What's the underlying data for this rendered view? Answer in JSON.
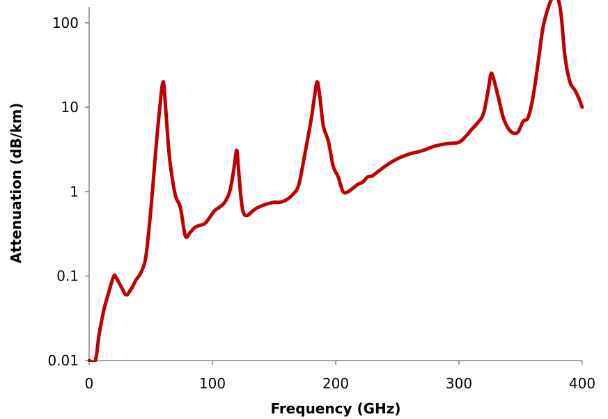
{
  "chart_data": {
    "type": "line",
    "title": "",
    "xlabel": "Frequency (GHz)",
    "ylabel": "Attenuation (dB/km)",
    "xlim": [
      0,
      400
    ],
    "ylim": [
      0.01,
      200
    ],
    "yscale": "log",
    "grid": false,
    "legend": "none",
    "x_ticks": [
      0,
      100,
      200,
      300,
      400
    ],
    "x_tick_labels": [
      "0",
      "100",
      "200",
      "300",
      "400"
    ],
    "y_ticks": [
      0.01,
      0.1,
      1,
      10,
      100
    ],
    "y_tick_labels": [
      "0.01",
      "0.1",
      "1",
      "10",
      "100"
    ],
    "series": [
      {
        "color": "#C00000",
        "x": [
          0,
          5,
          8,
          12,
          16,
          20,
          22,
          26,
          30,
          34,
          38,
          42,
          46,
          50,
          54,
          57,
          60,
          62,
          64,
          66,
          70,
          74,
          78,
          82,
          86,
          90,
          94,
          98,
          102,
          106,
          110,
          114,
          117,
          119,
          120,
          121,
          123,
          125,
          128,
          132,
          136,
          140,
          145,
          150,
          155,
          160,
          165,
          170,
          175,
          180,
          183,
          185,
          187,
          190,
          194,
          198,
          202,
          206,
          210,
          214,
          218,
          222,
          226,
          230,
          240,
          250,
          260,
          270,
          280,
          290,
          300,
          306,
          310,
          315,
          320,
          324,
          326,
          328,
          332,
          336,
          340,
          344,
          348,
          352,
          356,
          360,
          364,
          368,
          372,
          376,
          380,
          383,
          386,
          390,
          394,
          397,
          400
        ],
        "y": [
          0.01,
          0.01,
          0.02,
          0.04,
          0.065,
          0.1,
          0.095,
          0.075,
          0.06,
          0.07,
          0.09,
          0.11,
          0.17,
          0.6,
          3,
          9,
          20,
          10,
          4,
          2,
          0.9,
          0.65,
          0.3,
          0.33,
          0.38,
          0.4,
          0.42,
          0.5,
          0.6,
          0.66,
          0.75,
          1.0,
          1.7,
          2.8,
          3.0,
          2.0,
          0.9,
          0.57,
          0.52,
          0.58,
          0.64,
          0.68,
          0.72,
          0.75,
          0.75,
          0.8,
          0.92,
          1.2,
          2.8,
          7,
          14,
          20,
          14,
          6,
          4,
          2.0,
          1.5,
          1.0,
          1.0,
          1.1,
          1.22,
          1.3,
          1.5,
          1.55,
          2.0,
          2.45,
          2.8,
          3.05,
          3.45,
          3.7,
          3.85,
          4.6,
          5.4,
          6.5,
          8.5,
          17,
          25,
          22,
          13,
          7.5,
          5.6,
          4.95,
          5.1,
          6.8,
          7.5,
          13,
          32,
          85,
          145,
          200,
          200,
          120,
          40,
          20,
          16,
          13,
          10
        ]
      }
    ]
  }
}
